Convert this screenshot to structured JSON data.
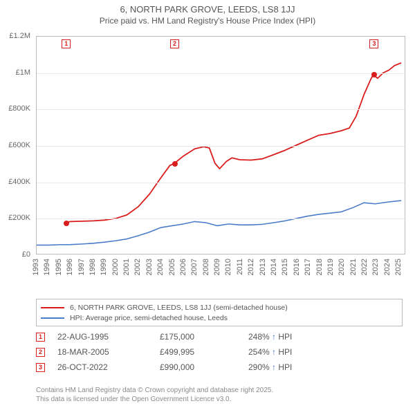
{
  "title": {
    "line1": "6, NORTH PARK GROVE, LEEDS, LS8 1JJ",
    "line2": "Price paid vs. HM Land Registry's House Price Index (HPI)"
  },
  "chart": {
    "type": "line",
    "background_color": "#ffffff",
    "grid_color": "#e9e9e9",
    "axis_color": "#bbbbbb",
    "label_color": "#666666",
    "label_fontsize": 11,
    "xlim": [
      1993,
      2025.6
    ],
    "ylim": [
      0,
      1200000
    ],
    "y_ticks": [
      {
        "v": 0,
        "label": "£0"
      },
      {
        "v": 200000,
        "label": "£200K"
      },
      {
        "v": 400000,
        "label": "£400K"
      },
      {
        "v": 600000,
        "label": "£600K"
      },
      {
        "v": 800000,
        "label": "£800K"
      },
      {
        "v": 1000000,
        "label": "£1M"
      },
      {
        "v": 1200000,
        "label": "£1.2M"
      }
    ],
    "x_ticks": [
      1993,
      1994,
      1995,
      1996,
      1997,
      1998,
      1999,
      2000,
      2001,
      2002,
      2003,
      2004,
      2005,
      2006,
      2007,
      2008,
      2009,
      2010,
      2011,
      2012,
      2013,
      2014,
      2015,
      2016,
      2017,
      2018,
      2019,
      2020,
      2021,
      2022,
      2023,
      2024,
      2025
    ],
    "series": {
      "price_paid": {
        "color": "#d91c1c",
        "line_width": 1.8,
        "data": [
          [
            1995.64,
            175000
          ],
          [
            1996,
            178000
          ],
          [
            1997,
            180000
          ],
          [
            1998,
            182000
          ],
          [
            1999,
            186000
          ],
          [
            2000,
            195000
          ],
          [
            2001,
            215000
          ],
          [
            2002,
            260000
          ],
          [
            2003,
            330000
          ],
          [
            2004,
            420000
          ],
          [
            2004.8,
            488000
          ],
          [
            2005.21,
            499995
          ],
          [
            2006,
            540000
          ],
          [
            2007,
            580000
          ],
          [
            2007.8,
            592000
          ],
          [
            2008.3,
            585000
          ],
          [
            2008.8,
            500000
          ],
          [
            2009.2,
            470000
          ],
          [
            2009.8,
            510000
          ],
          [
            2010.3,
            530000
          ],
          [
            2011,
            520000
          ],
          [
            2012,
            518000
          ],
          [
            2013,
            525000
          ],
          [
            2014,
            548000
          ],
          [
            2015,
            572000
          ],
          [
            2016,
            600000
          ],
          [
            2017,
            628000
          ],
          [
            2018,
            655000
          ],
          [
            2019,
            665000
          ],
          [
            2020,
            680000
          ],
          [
            2020.7,
            695000
          ],
          [
            2021.3,
            760000
          ],
          [
            2022,
            880000
          ],
          [
            2022.6,
            965000
          ],
          [
            2022.82,
            990000
          ],
          [
            2023.2,
            970000
          ],
          [
            2023.7,
            1000000
          ],
          [
            2024.2,
            1015000
          ],
          [
            2024.7,
            1040000
          ],
          [
            2025.3,
            1055000
          ]
        ]
      },
      "hpi": {
        "color": "#4a7bc8",
        "line_width": 1.6,
        "data": [
          [
            1993,
            48000
          ],
          [
            1994,
            48000
          ],
          [
            1995,
            50000
          ],
          [
            1996,
            51000
          ],
          [
            1997,
            54000
          ],
          [
            1998,
            58000
          ],
          [
            1999,
            64000
          ],
          [
            2000,
            72000
          ],
          [
            2001,
            82000
          ],
          [
            2002,
            100000
          ],
          [
            2003,
            120000
          ],
          [
            2004,
            145000
          ],
          [
            2005,
            155000
          ],
          [
            2006,
            165000
          ],
          [
            2007,
            178000
          ],
          [
            2008,
            172000
          ],
          [
            2009,
            155000
          ],
          [
            2010,
            165000
          ],
          [
            2011,
            160000
          ],
          [
            2012,
            160000
          ],
          [
            2013,
            163000
          ],
          [
            2014,
            172000
          ],
          [
            2015,
            182000
          ],
          [
            2016,
            195000
          ],
          [
            2017,
            208000
          ],
          [
            2018,
            218000
          ],
          [
            2019,
            225000
          ],
          [
            2020,
            232000
          ],
          [
            2021,
            255000
          ],
          [
            2022,
            282000
          ],
          [
            2023,
            276000
          ],
          [
            2024,
            285000
          ],
          [
            2025,
            292000
          ],
          [
            2025.3,
            294000
          ]
        ]
      }
    },
    "sale_points": [
      {
        "n": "1",
        "x": 1995.64,
        "y": 175000,
        "color": "#d91c1c"
      },
      {
        "n": "2",
        "x": 2005.21,
        "y": 499995,
        "color": "#d91c1c"
      },
      {
        "n": "3",
        "x": 2022.82,
        "y": 990000,
        "color": "#d91c1c"
      }
    ],
    "top_markers": [
      {
        "n": "1",
        "x": 1995.64,
        "color": "#d91c1c"
      },
      {
        "n": "2",
        "x": 2005.21,
        "color": "#d91c1c"
      },
      {
        "n": "3",
        "x": 2022.82,
        "color": "#d91c1c"
      }
    ]
  },
  "legend": {
    "items": [
      {
        "color": "#d91c1c",
        "label": "6, NORTH PARK GROVE, LEEDS, LS8 1JJ (semi-detached house)"
      },
      {
        "color": "#4a7bc8",
        "label": "HPI: Average price, semi-detached house, Leeds"
      }
    ]
  },
  "sales": [
    {
      "n": "1",
      "color": "#d91c1c",
      "date": "22-AUG-1995",
      "price": "£175,000",
      "pct": "248%",
      "suffix": "HPI"
    },
    {
      "n": "2",
      "color": "#d91c1c",
      "date": "18-MAR-2005",
      "price": "£499,995",
      "pct": "254%",
      "suffix": "HPI"
    },
    {
      "n": "3",
      "color": "#d91c1c",
      "date": "26-OCT-2022",
      "price": "£990,000",
      "pct": "290%",
      "suffix": "HPI"
    }
  ],
  "footer": {
    "line1": "Contains HM Land Registry data © Crown copyright and database right 2025.",
    "line2": "This data is licensed under the Open Government Licence v3.0."
  }
}
